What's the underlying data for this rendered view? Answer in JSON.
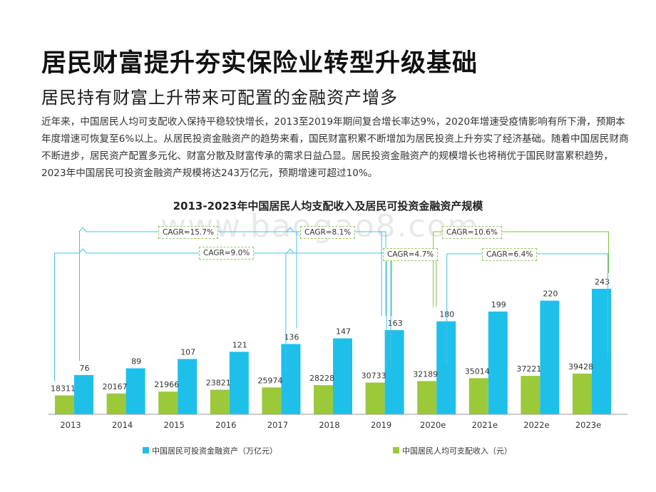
{
  "title": "居民财富提升夯实保险业转型升级基础",
  "subtitle": "居民持有财富上升带来可配置的金融资产增多",
  "body_text": "近年来，中国居民人均可支配收入保持平稳较快增长，2013至2019年期间复合增长率达9%，2020年增速受疫情影响有所下滑，预期本年度增速可恢复至6%以上。从居民投资金融资产的趋势来看，国民财富积累不断增加为居民投资上升夯实了经济基础。随着中国居民财商不断进步，居民资产配置多元化、财富分散及财富传承的需求日益凸显。居民投资金融资产的规模增长也将稍优于国民财富累积趋势，2023年中国居民可投资金融资产规模将达243万亿元，预期增速可超过10%。",
  "watermark": "www.baogao8.com",
  "chart_data": {
    "type": "bar",
    "title": "2013-2023年中国居民人均支配收入及居民可投资金融资产规模",
    "categories": [
      "2013",
      "2014",
      "2015",
      "2016",
      "2017",
      "2018",
      "2019",
      "2020e",
      "2021e",
      "2022e",
      "2023e"
    ],
    "series": [
      {
        "name": "中国居民人均可支配收入（元）",
        "color": "#9bc93a",
        "values": [
          18311,
          20167,
          21966,
          23821,
          25974,
          28228,
          30733,
          32189,
          35014,
          37221,
          39428
        ]
      },
      {
        "name": "中国居民可投资金融资产（万亿元）",
        "color": "#1ec0ea",
        "values": [
          76,
          89,
          107,
          121,
          136,
          147,
          163,
          180,
          199,
          220,
          243
        ]
      }
    ],
    "annotations": {
      "cagr_labels": [
        "CAGR=15.7%",
        "CAGR=9.0%",
        "CAGR=8.1%",
        "CAGR=4.7%",
        "CAGR=10.6%",
        "CAGR=6.4%"
      ]
    },
    "legend": [
      "中国居民可投资金融资产（万亿元）",
      "中国居民人均可支配收入（元）"
    ],
    "legend_position": "bottom"
  }
}
